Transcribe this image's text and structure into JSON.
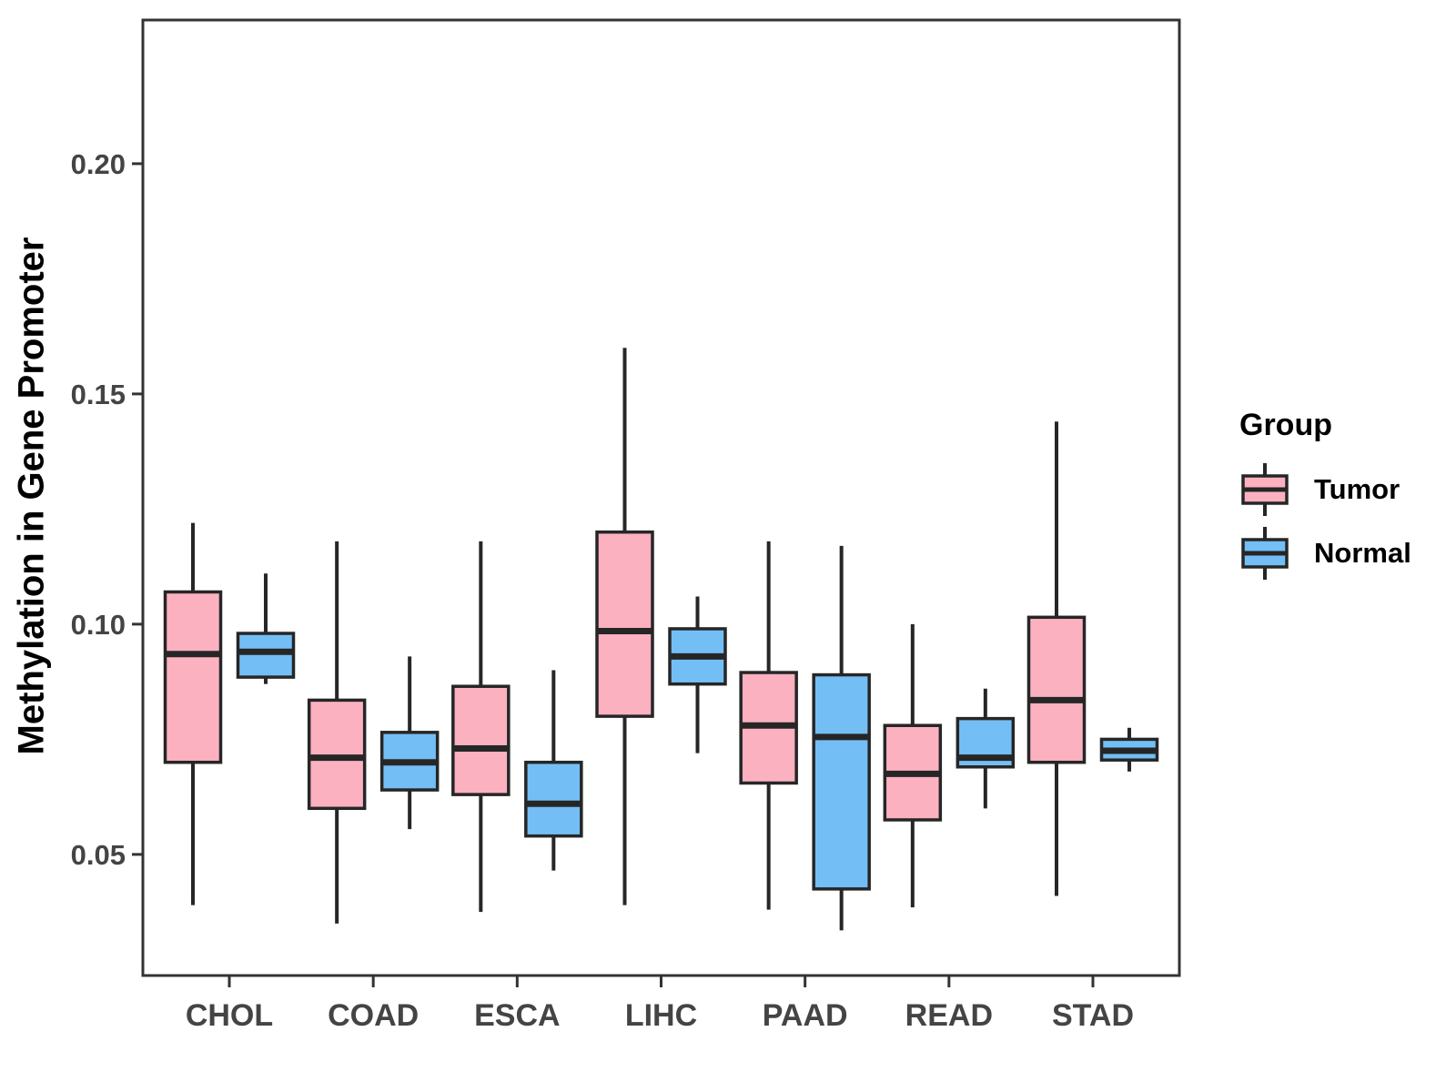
{
  "figure": {
    "legend": {
      "title": "Group",
      "entries": [
        {
          "label": "Tumor",
          "color": "#FBB1C0"
        },
        {
          "label": "Normal",
          "color": "#73BFF5"
        }
      ]
    }
  },
  "chart_data": {
    "type": "boxplot",
    "title": "",
    "xlabel": "",
    "ylabel": "Methylation in Gene Promoter",
    "categories": [
      "CHOL",
      "COAD",
      "ESCA",
      "LIHC",
      "PAAD",
      "READ",
      "STAD"
    ],
    "groups": [
      "Tumor",
      "Normal"
    ],
    "group_colors": {
      "Tumor": "#FBB1C0",
      "Normal": "#73BFF5"
    },
    "yticks": [
      0.05,
      0.1,
      0.15,
      0.2
    ],
    "ylim": [
      0.0237,
      0.2312
    ],
    "grid": false,
    "legend_position": "right",
    "series": [
      {
        "name": "Tumor",
        "boxes": [
          {
            "category": "CHOL",
            "low": 0.039,
            "q1": 0.07,
            "median": 0.0935,
            "q3": 0.107,
            "high": 0.122
          },
          {
            "category": "COAD",
            "low": 0.035,
            "q1": 0.06,
            "median": 0.071,
            "q3": 0.0835,
            "high": 0.118
          },
          {
            "category": "ESCA",
            "low": 0.0375,
            "q1": 0.063,
            "median": 0.073,
            "q3": 0.0865,
            "high": 0.118
          },
          {
            "category": "LIHC",
            "low": 0.039,
            "q1": 0.08,
            "median": 0.0985,
            "q3": 0.12,
            "high": 0.16
          },
          {
            "category": "PAAD",
            "low": 0.038,
            "q1": 0.0655,
            "median": 0.078,
            "q3": 0.0895,
            "high": 0.118
          },
          {
            "category": "READ",
            "low": 0.0385,
            "q1": 0.0575,
            "median": 0.0675,
            "q3": 0.078,
            "high": 0.1
          },
          {
            "category": "STAD",
            "low": 0.041,
            "q1": 0.07,
            "median": 0.0835,
            "q3": 0.1015,
            "high": 0.144
          }
        ]
      },
      {
        "name": "Normal",
        "boxes": [
          {
            "category": "CHOL",
            "low": 0.087,
            "q1": 0.0885,
            "median": 0.094,
            "q3": 0.098,
            "high": 0.111
          },
          {
            "category": "COAD",
            "low": 0.0555,
            "q1": 0.064,
            "median": 0.07,
            "q3": 0.0765,
            "high": 0.093
          },
          {
            "category": "ESCA",
            "low": 0.0465,
            "q1": 0.054,
            "median": 0.061,
            "q3": 0.07,
            "high": 0.09
          },
          {
            "category": "LIHC",
            "low": 0.072,
            "q1": 0.087,
            "median": 0.093,
            "q3": 0.099,
            "high": 0.106
          },
          {
            "category": "PAAD",
            "low": 0.0335,
            "q1": 0.0425,
            "median": 0.0755,
            "q3": 0.089,
            "high": 0.117
          },
          {
            "category": "READ",
            "low": 0.06,
            "q1": 0.069,
            "median": 0.071,
            "q3": 0.0795,
            "high": 0.086
          },
          {
            "category": "STAD",
            "low": 0.068,
            "q1": 0.0705,
            "median": 0.0725,
            "q3": 0.075,
            "high": 0.0775
          }
        ]
      }
    ]
  }
}
